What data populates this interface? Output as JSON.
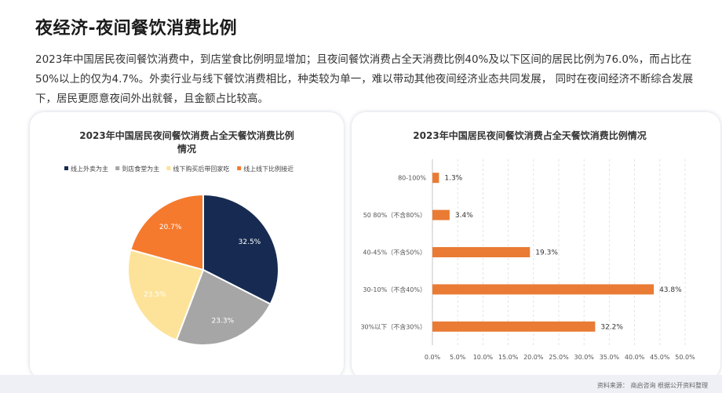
{
  "page": {
    "title": "夜经济-夜间餐饮消费比例",
    "description": "2023年中国居民夜间餐饮消费中，到店堂食比例明显增加；且夜间餐饮消费占全天消费比例40%及以下区间的居民比例为76.0%，而占比在50%以上的仅为4.7%。外卖行业与线下餐饮消费相比，种类较为单一，难以带动其他夜间经济业态共同发展， 同时在夜间经济不断综合发展下，居民更愿意夜间外出就餐，且金额占比较高。",
    "source": "资料来源： 商启咨询 根据公开资料整理",
    "accent_colors": [
      "#f4a14a",
      "#e45a3c"
    ]
  },
  "chart_data": [
    {
      "type": "pie",
      "title_lines": [
        "2023年中国居民夜间餐饮消费占全天餐饮消费比例",
        "情况"
      ],
      "legend_position": "top",
      "slices": [
        {
          "name": "线上外卖为主",
          "value": 32.5,
          "label": "32.5%",
          "color": "#172b52"
        },
        {
          "name": "到店食堂为主",
          "value": 23.3,
          "label": "23.3%",
          "color": "#a6a6a6"
        },
        {
          "name": "线下购买后带回家吃",
          "value": 23.5,
          "label": "23.5%",
          "color": "#fde399"
        },
        {
          "name": "线上线下比例接近",
          "value": 20.7,
          "label": "20.7%",
          "color": "#f57a2e"
        }
      ]
    },
    {
      "type": "bar",
      "orientation": "horizontal",
      "title": "2023年中国居民夜间餐饮消费占全天餐饮消费比例情况",
      "categories": [
        "80-100%",
        "50 80%（不含80%）",
        "40-45%（不含50%）",
        "30-10%（不含40%）",
        "30%以下（不含30%）"
      ],
      "values": [
        1.3,
        3.4,
        19.3,
        43.8,
        32.2
      ],
      "labels": [
        "1.3%",
        "3.4%",
        "19.3%",
        "43.8%",
        "32.2%"
      ],
      "color": "#e97b34",
      "xlim": [
        0,
        50
      ],
      "xticks": [
        "0.0%",
        "5.0%",
        "10.0%",
        "15.0%",
        "20.0%",
        "25.0%",
        "30.0%",
        "35.0%",
        "40.0%",
        "45.0%",
        "50.0%"
      ],
      "grid": "vertical-dashed"
    }
  ]
}
